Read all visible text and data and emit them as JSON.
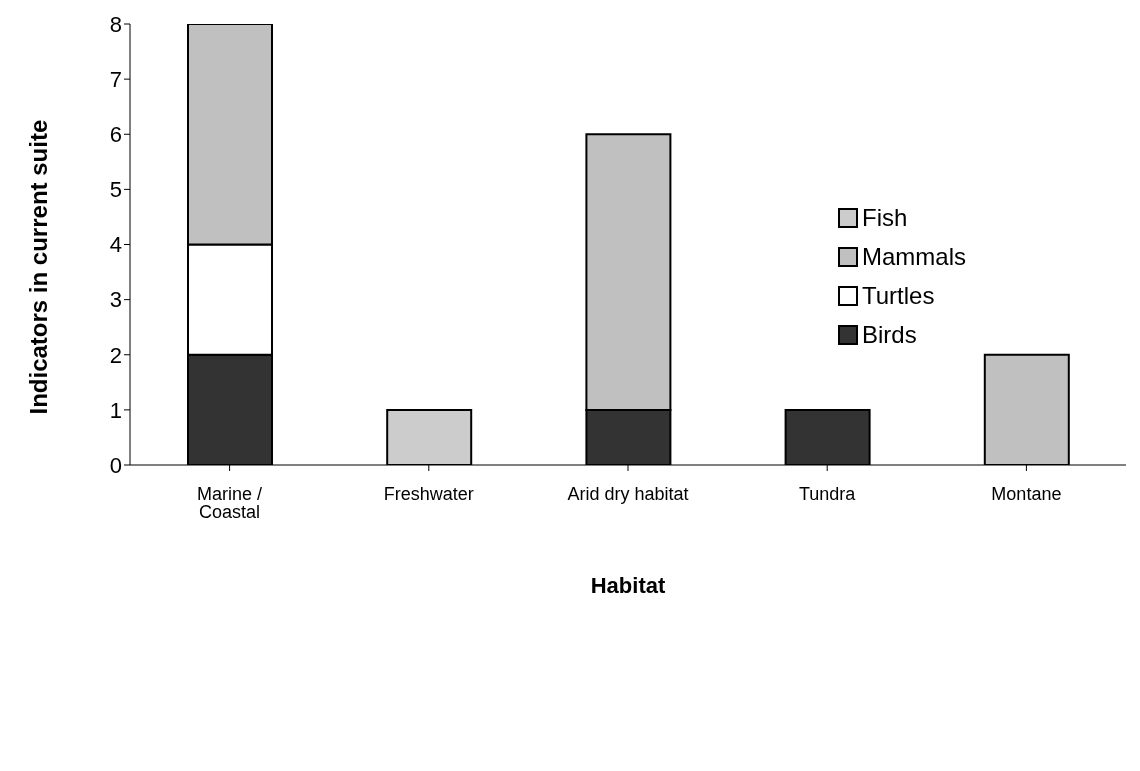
{
  "chart_data": {
    "type": "bar",
    "stacked": true,
    "xlabel": "Habitat",
    "ylabel": "Indicators in current suite",
    "categories": [
      "Marine / Coastal",
      "Freshwater",
      "Arid dry habitat",
      "Tundra",
      "Montane"
    ],
    "series": [
      {
        "name": "Birds",
        "color": "#333333",
        "values": [
          2,
          0,
          1,
          1,
          0
        ]
      },
      {
        "name": "Turtles",
        "color": "#ffffff",
        "values": [
          2,
          0,
          0,
          0,
          0
        ]
      },
      {
        "name": "Mammals",
        "color": "#c0c0c0",
        "values": [
          4,
          0,
          5,
          0,
          2
        ]
      },
      {
        "name": "Fish",
        "color": "#cccccc",
        "values": [
          0,
          1,
          0,
          0,
          0
        ]
      }
    ],
    "ylim": [
      0,
      8
    ],
    "yticks": [
      0,
      1,
      2,
      3,
      4,
      5,
      6,
      7,
      8
    ],
    "legend": "right"
  }
}
